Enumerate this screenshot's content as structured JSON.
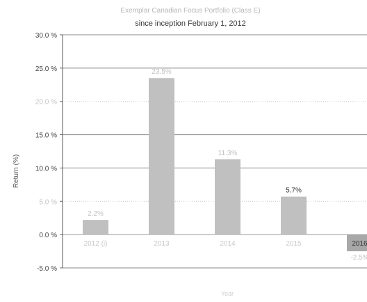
{
  "chart_data": {
    "type": "bar",
    "title_line1": "Exemplar Canadian Focus Portfolio (Class E)",
    "title_line2": "since inception February 1, 2012",
    "categories": [
      "2012 (i)",
      "2013",
      "2014",
      "2015",
      "2016"
    ],
    "values": [
      2.2,
      23.5,
      11.3,
      5.7,
      -2.5
    ],
    "data_labels": [
      "2.2%",
      "23.5%",
      "11.3%",
      "5.7%",
      "-2.5%"
    ],
    "xlabel": "Year",
    "ylabel": "Return (%)",
    "ylim": [
      -5,
      30
    ],
    "yticks": [
      30,
      25,
      20,
      15,
      10,
      5,
      0,
      -5
    ],
    "ytick_labels": [
      "30.0 %",
      "25.0 %",
      "20.0 %",
      "15.0 %",
      "10.0 %",
      "5.0 %",
      "0.0 %",
      "-5.0 %"
    ],
    "grid": true,
    "bar_color": "#c0c0c0",
    "grid_color": "#c8c8c8"
  }
}
